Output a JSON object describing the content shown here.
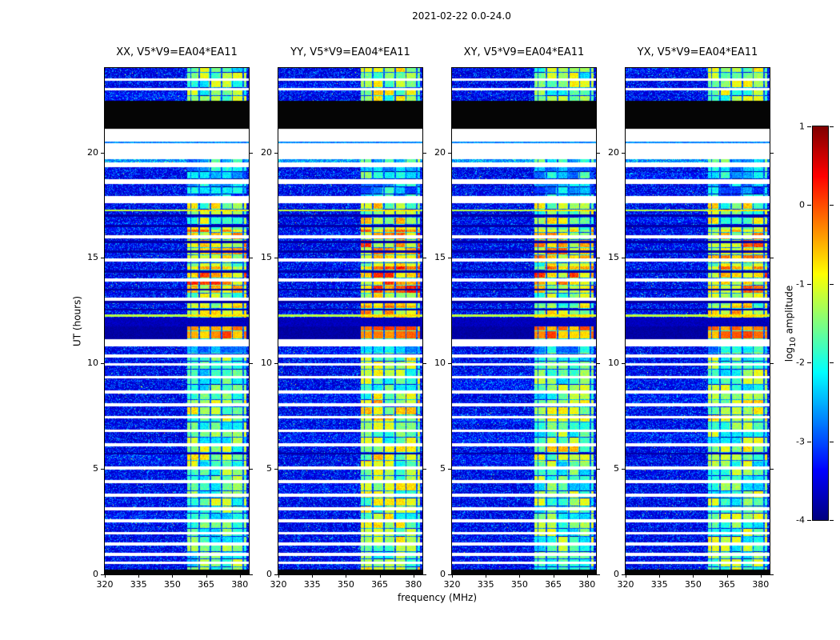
{
  "chart_data": {
    "type": "heatmap",
    "title": "2021-02-22 0.0-24.0",
    "xlabel": "frequency (MHz)",
    "ylabel": "UT (hours)",
    "x_range": [
      320,
      384
    ],
    "x_ticks": [
      320,
      335,
      350,
      365,
      380
    ],
    "y_range": [
      0,
      24
    ],
    "y_ticks": [
      0,
      5,
      10,
      15,
      20
    ],
    "panels": [
      {
        "title": "XX, V5*V9=EA04*EA11",
        "band_gain": 0.0
      },
      {
        "title": "YY, V5*V9=EA04*EA11",
        "band_gain": 0.3
      },
      {
        "title": "XY, V5*V9=EA04*EA11",
        "band_gain": 0.05
      },
      {
        "title": "YX, V5*V9=EA04*EA11",
        "band_gain": 0.12
      }
    ],
    "colorbar": {
      "label_prefix": "log",
      "label_sub": "10",
      "label_suffix": " amplitude",
      "tick_values": [
        1,
        0,
        -1,
        -2,
        -3,
        -4
      ],
      "vmin": -4,
      "vmax": 1,
      "colormap": "jet"
    },
    "spectrogram": {
      "band_freq_start": 356.5,
      "band_freq_end": 383.0,
      "band_cell_lines": [
        358.2,
        362.0,
        366.9,
        371.8,
        376.7,
        381.6
      ],
      "segments": [
        {
          "t0": 0.0,
          "t1": 0.22,
          "kind": "black"
        },
        {
          "t0": 0.22,
          "t1": 10.5,
          "kind": "data",
          "band": 0.44
        },
        {
          "t0": 10.5,
          "t1": 10.8,
          "kind": "data",
          "band": 0.28
        },
        {
          "t0": 10.8,
          "t1": 11.15,
          "kind": "white"
        },
        {
          "t0": 11.15,
          "t1": 11.75,
          "kind": "blackhot"
        },
        {
          "t0": 11.75,
          "t1": 12.18,
          "kind": "dark"
        },
        {
          "t0": 12.18,
          "t1": 17.6,
          "kind": "data",
          "band": 0.5
        },
        {
          "t0": 17.6,
          "t1": 17.95,
          "kind": "white"
        },
        {
          "t0": 17.95,
          "t1": 18.5,
          "kind": "data",
          "band": 0.26
        },
        {
          "t0": 18.5,
          "t1": 18.72,
          "kind": "white"
        },
        {
          "t0": 18.72,
          "t1": 19.3,
          "kind": "data",
          "band": 0.3
        },
        {
          "t0": 19.3,
          "t1": 19.52,
          "kind": "white"
        },
        {
          "t0": 19.52,
          "t1": 19.68,
          "kind": "data",
          "band": 0.34,
          "bg": -2.9
        },
        {
          "t0": 19.68,
          "t1": 21.1,
          "kind": "white"
        },
        {
          "t0": 21.1,
          "t1": 22.45,
          "kind": "black"
        },
        {
          "t0": 22.45,
          "t1": 24.01,
          "kind": "data",
          "band": 0.46
        }
      ],
      "white_stripes": [
        0.55,
        0.95,
        1.45,
        1.95,
        2.55,
        3.1,
        3.75,
        4.4,
        5.05,
        6.15,
        6.8,
        7.45,
        8.05,
        8.65,
        9.35,
        9.95,
        10.35,
        13.05,
        13.95,
        14.9,
        16.0,
        23.0,
        23.45
      ],
      "dark_stripes": [
        5.72,
        12.55,
        12.9,
        13.5,
        14.35,
        15.3,
        15.75,
        16.5,
        17.0
      ],
      "blue_lines": [
        20.47
      ],
      "yellow_lines": [
        12.26,
        17.25
      ],
      "hot_regions": [
        {
          "t0": 5.35,
          "t1": 6.1,
          "add": 0.5
        },
        {
          "t0": 7.3,
          "t1": 8.3,
          "add": 0.45
        },
        {
          "t0": 12.3,
          "t1": 12.75,
          "add": 0.35
        },
        {
          "t0": 13.3,
          "t1": 14.6,
          "add": 0.85
        },
        {
          "t0": 14.9,
          "t1": 16.35,
          "add": 0.65
        }
      ]
    }
  }
}
